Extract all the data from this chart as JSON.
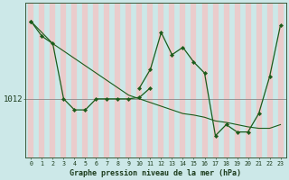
{
  "xlabel": "Graphe pression niveau de la mer (hPa)",
  "background_color": "#cce8e8",
  "stripe_color": "#f0c8c8",
  "line_color": "#1a5c1a",
  "hours": [
    0,
    1,
    2,
    3,
    4,
    5,
    6,
    7,
    8,
    9,
    10,
    11,
    12,
    13,
    14,
    15,
    16,
    17,
    18,
    19,
    20,
    21,
    22,
    23
  ],
  "line1_y": [
    1022.5,
    1020.5,
    1019.5,
    1012.0,
    1010.5,
    1010.5,
    1012.0,
    1012.0,
    1012.0,
    1012.0,
    1012.2,
    1013.5,
    null,
    null,
    null,
    null,
    null,
    null,
    null,
    null,
    null,
    null,
    null,
    null
  ],
  "line2_y": [
    1022.5,
    null,
    null,
    null,
    null,
    null,
    null,
    null,
    null,
    null,
    1013.5,
    1016.0,
    1021.0,
    1018.0,
    1019.0,
    1017.0,
    1015.5,
    1007.0,
    1008.5,
    1007.5,
    1007.5,
    1010.0,
    1015.0,
    1022.0
  ],
  "line3_y": [
    1022.5,
    1021.0,
    1019.5,
    1018.5,
    1017.5,
    1016.5,
    1015.5,
    1014.5,
    1013.5,
    1012.5,
    1012.0,
    1011.5,
    1011.0,
    1010.5,
    1010.0,
    1009.8,
    1009.5,
    1009.0,
    1008.8,
    1008.5,
    1008.2,
    1008.0,
    1008.0,
    1008.5
  ],
  "hline_y": 1012,
  "ylim": [
    1004,
    1025
  ],
  "yticks": [
    1012
  ]
}
